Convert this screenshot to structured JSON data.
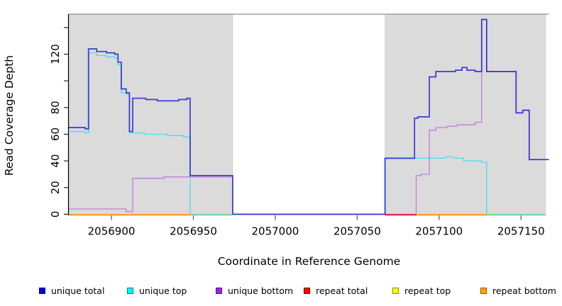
{
  "chart_data": {
    "type": "line",
    "title": "",
    "xlabel": "Coordinate in Reference Genome",
    "ylabel": "Read Coverage Depth",
    "xlim": [
      2056874,
      2057167
    ],
    "ylim": [
      0,
      150
    ],
    "grid": false,
    "legend_position": "bottom",
    "x_ticks": [
      2056900,
      2056950,
      2057000,
      2057050,
      2057100,
      2057150
    ],
    "x_tick_labels": [
      "2056900",
      "2056950",
      "2057000",
      "2057050",
      "2057100",
      "2057150"
    ],
    "y_ticks": [
      0,
      20,
      40,
      60,
      80,
      100,
      120,
      140
    ],
    "y_tick_labels": [
      "0",
      "20",
      "40",
      "60",
      "80",
      "",
      "120",
      ""
    ],
    "shaded_regions": [
      {
        "name": "repeat-region-left",
        "x1": 2056874,
        "x2": 2056974,
        "color": "#DBDBDB"
      },
      {
        "name": "repeat-region-right",
        "x1": 2057067,
        "x2": 2057165,
        "color": "#DBDBDB"
      }
    ],
    "series": [
      {
        "name": "unique top",
        "color": "#45DFEF",
        "width": 1.3,
        "opacity": 1,
        "points": [
          [
            2056874,
            62
          ],
          [
            2056884,
            61
          ],
          [
            2056886,
            121
          ],
          [
            2056891,
            119
          ],
          [
            2056897,
            118
          ],
          [
            2056902,
            117
          ],
          [
            2056904,
            112
          ],
          [
            2056906,
            91
          ],
          [
            2056909,
            90
          ],
          [
            2056911,
            61
          ],
          [
            2056920,
            60
          ],
          [
            2056934,
            59
          ],
          [
            2056944,
            58
          ],
          [
            2056948,
            0
          ],
          [
            2057067,
            42
          ],
          [
            2057104,
            43
          ],
          [
            2057109,
            42
          ],
          [
            2057115,
            40
          ],
          [
            2057126,
            39
          ],
          [
            2057129,
            0
          ],
          [
            2057165,
            0
          ]
        ]
      },
      {
        "name": "unique bottom",
        "color": "#BD7DDC",
        "width": 1.3,
        "opacity": 1,
        "points": [
          [
            2056874,
            4
          ],
          [
            2056907,
            4
          ],
          [
            2056909,
            2
          ],
          [
            2056913,
            27
          ],
          [
            2056932,
            28
          ],
          [
            2056948,
            28
          ],
          [
            2056974,
            0
          ],
          [
            2057086,
            29
          ],
          [
            2057089,
            30
          ],
          [
            2057094,
            63
          ],
          [
            2057098,
            65
          ],
          [
            2057105,
            66
          ],
          [
            2057111,
            67
          ],
          [
            2057122,
            69
          ],
          [
            2057126,
            146
          ],
          [
            2057129,
            107
          ],
          [
            2057147,
            76
          ],
          [
            2057151,
            78
          ],
          [
            2057155,
            41
          ],
          [
            2057167,
            41
          ]
        ]
      },
      {
        "name": "unique total",
        "color": "#1E1ECF",
        "width": 1.7,
        "opacity": 0.85,
        "points": [
          [
            2056874,
            65
          ],
          [
            2056884,
            64
          ],
          [
            2056886,
            124
          ],
          [
            2056891,
            122
          ],
          [
            2056897,
            121
          ],
          [
            2056902,
            120
          ],
          [
            2056904,
            114
          ],
          [
            2056906,
            94
          ],
          [
            2056909,
            91
          ],
          [
            2056911,
            62
          ],
          [
            2056913,
            87
          ],
          [
            2056921,
            86
          ],
          [
            2056928,
            85
          ],
          [
            2056941,
            86
          ],
          [
            2056946,
            87
          ],
          [
            2056948,
            29
          ],
          [
            2056974,
            0
          ],
          [
            2057067,
            42
          ],
          [
            2057085,
            72
          ],
          [
            2057087,
            73
          ],
          [
            2057094,
            103
          ],
          [
            2057098,
            107
          ],
          [
            2057110,
            108
          ],
          [
            2057114,
            110
          ],
          [
            2057117,
            108
          ],
          [
            2057122,
            107
          ],
          [
            2057126,
            146
          ],
          [
            2057129,
            107
          ],
          [
            2057147,
            76
          ],
          [
            2057151,
            78
          ],
          [
            2057155,
            41
          ],
          [
            2057167,
            41
          ]
        ]
      }
    ],
    "baseline_segments": [
      {
        "name": "repeat bottom",
        "color": "#FF9414",
        "x1": 2056874,
        "x2": 2056948
      },
      {
        "name": "strand overlap",
        "color": "#85D79B",
        "x1": 2056948,
        "x2": 2056974
      },
      {
        "name": "repeat total",
        "color": "#E5202E",
        "x1": 2057067,
        "x2": 2057086
      },
      {
        "name": "repeat bottom",
        "color": "#FF9414",
        "x1": 2057086,
        "x2": 2057129
      },
      {
        "name": "strand overlap",
        "color": "#85D79B",
        "x1": 2057129,
        "x2": 2057165
      }
    ],
    "legend": [
      {
        "label": "unique total",
        "color": "#0000EE"
      },
      {
        "label": "unique top",
        "color": "#00F5FF"
      },
      {
        "label": "unique bottom",
        "color": "#A020F0"
      },
      {
        "label": "repeat total",
        "color": "#FF0000"
      },
      {
        "label": "repeat top",
        "color": "#FFFF00"
      },
      {
        "label": "repeat bottom",
        "color": "#FFA500"
      }
    ],
    "axis_color": "#000000",
    "frame_top_color": "#8F8F8F"
  }
}
